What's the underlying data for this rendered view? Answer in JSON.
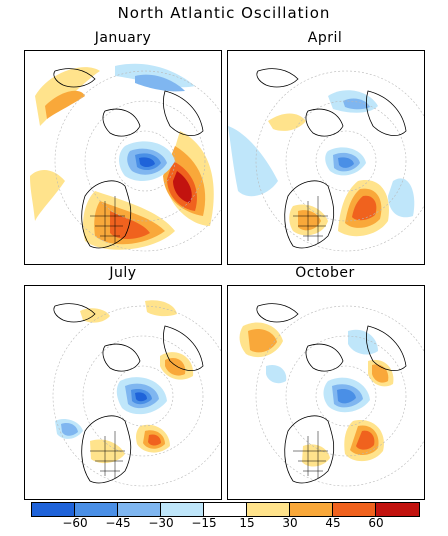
{
  "title": "North Atlantic Oscillation",
  "panels": [
    {
      "label": "January"
    },
    {
      "label": "April"
    },
    {
      "label": "July"
    },
    {
      "label": "October"
    }
  ],
  "legend": {
    "colors": [
      "#1f63d9",
      "#4a8fe6",
      "#7fb6f0",
      "#bfe6fa",
      "#ffffff",
      "#ffe38c",
      "#f9a83a",
      "#f0621e",
      "#c2130f"
    ],
    "tick_labels": [
      "−60",
      "−45",
      "−30",
      "−15",
      "15",
      "30",
      "45",
      "60"
    ]
  },
  "colors": {
    "land_outline": "#000000",
    "grid": "#b8b8b8"
  }
}
